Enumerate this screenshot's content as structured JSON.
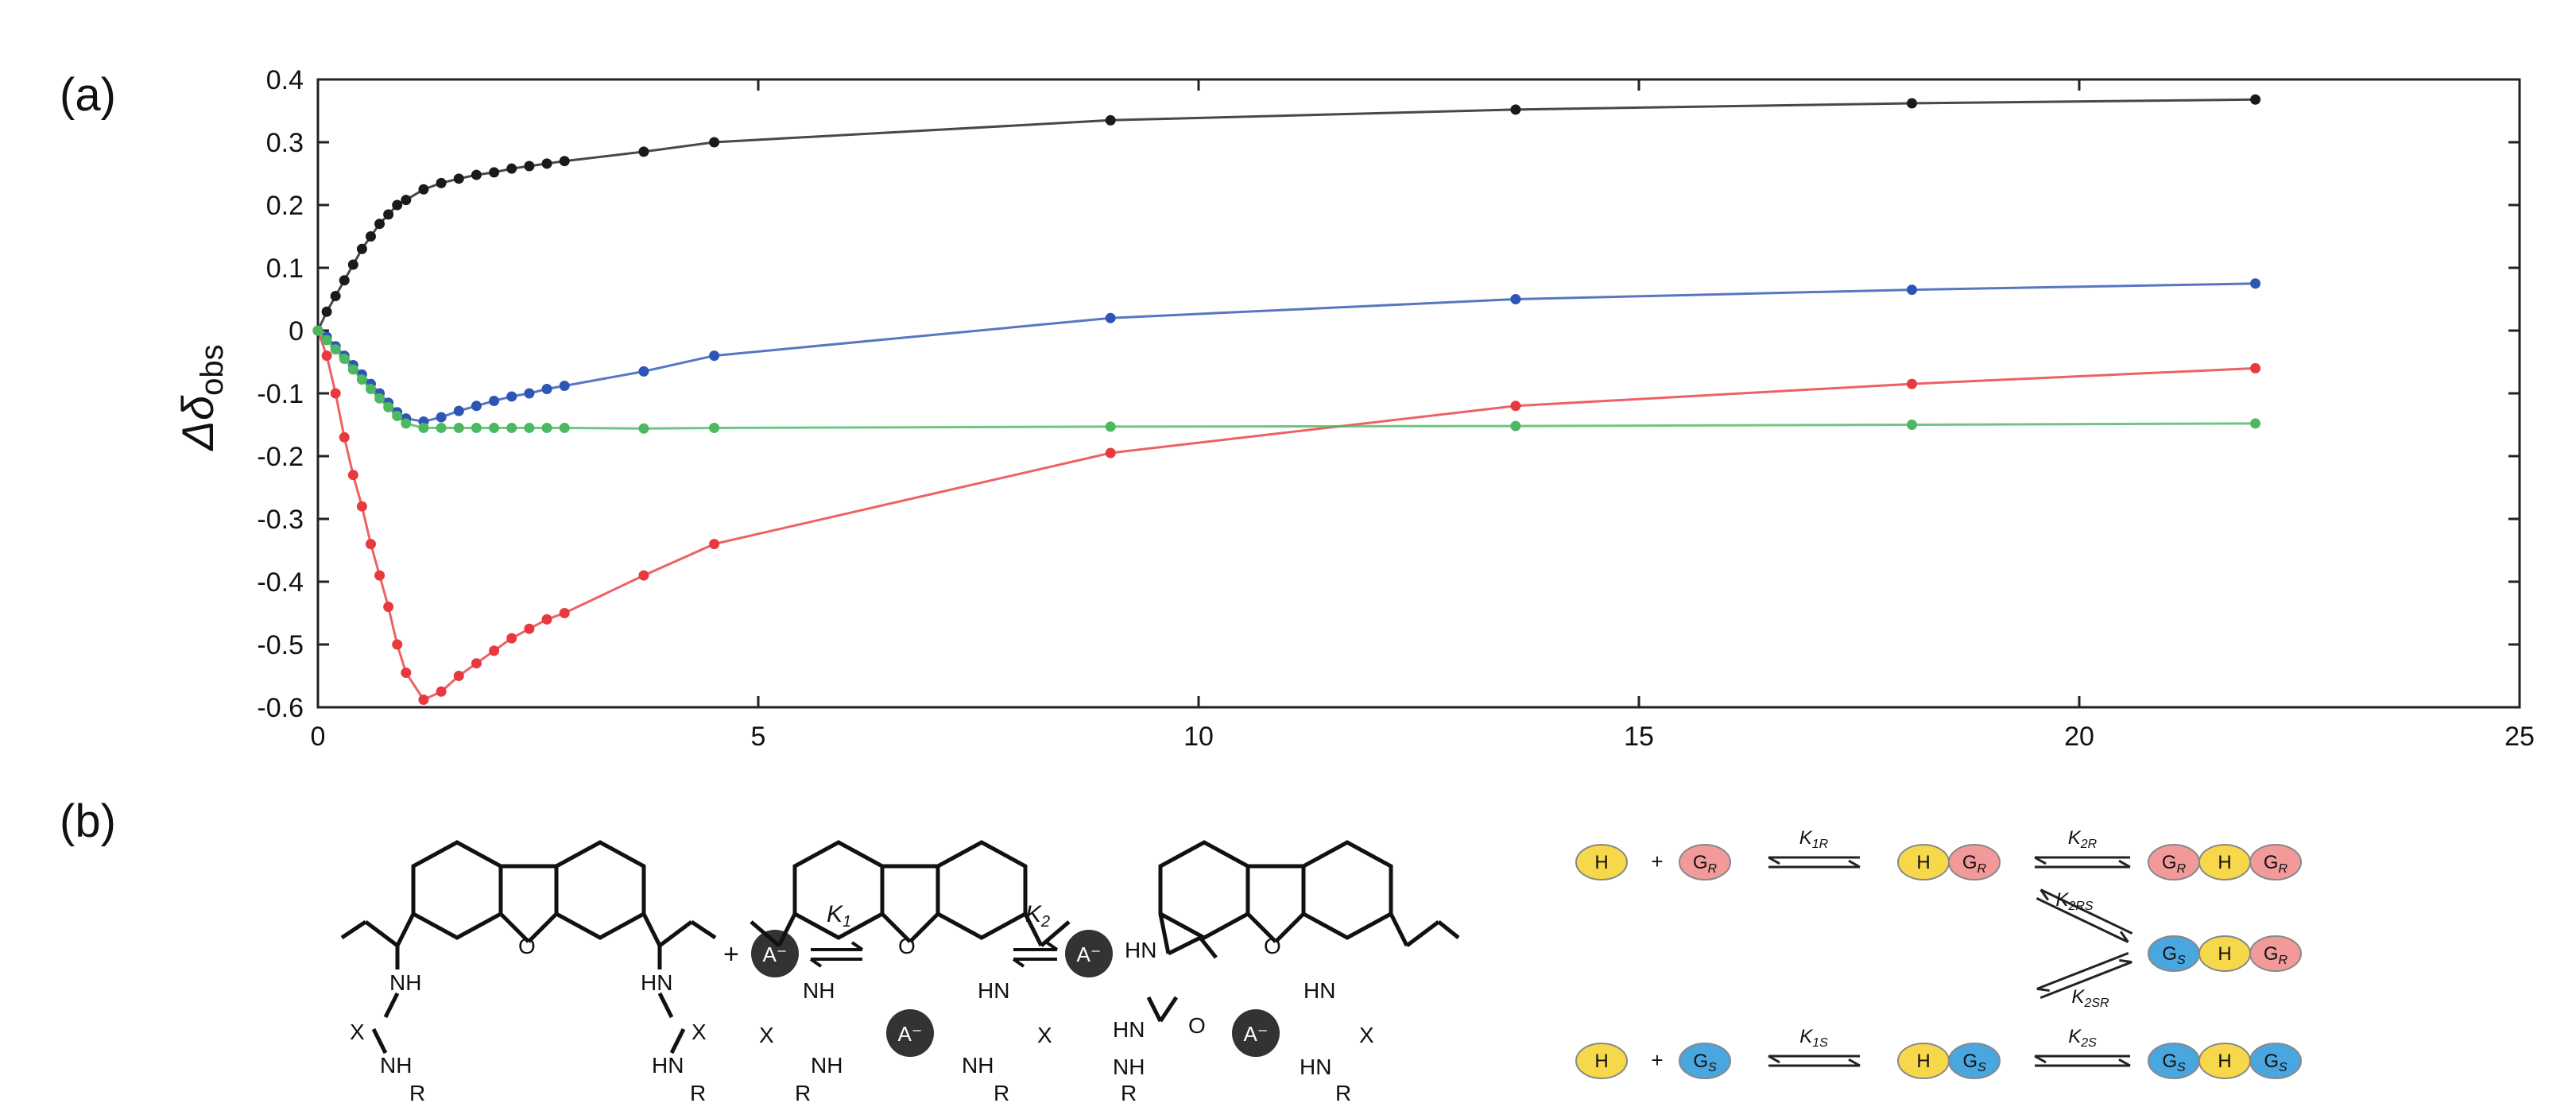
{
  "panels": {
    "a": "(a)",
    "b": "(b)"
  },
  "chart_data": {
    "type": "line",
    "title": "",
    "xlabel": "",
    "ylabel": "Δδ",
    "ylabel_sub": "obs",
    "xlim": [
      0,
      25
    ],
    "ylim": [
      -0.6,
      0.4
    ],
    "xticks": [
      0,
      5,
      10,
      15,
      20,
      25
    ],
    "yticks": [
      -0.6,
      -0.5,
      -0.4,
      -0.3,
      -0.2,
      -0.1,
      0,
      0.1,
      0.2,
      0.3,
      0.4
    ],
    "ytick_labels": [
      "-0.6",
      "-0.5",
      "-0.4",
      "-0.3",
      "-0.2",
      "-0.1",
      "0",
      "0.1",
      "0.2",
      "0.3",
      "0.4"
    ],
    "grid": false,
    "legend": "none",
    "series": [
      {
        "color": "#1a1a1a",
        "x": [
          0,
          0.1,
          0.2,
          0.3,
          0.4,
          0.5,
          0.6,
          0.7,
          0.8,
          0.9,
          1.0,
          1.2,
          1.4,
          1.6,
          1.8,
          2.0,
          2.2,
          2.4,
          2.6,
          2.8,
          3.7,
          4.5,
          9.0,
          13.6,
          18.1,
          22.0
        ],
        "y": [
          0,
          0.03,
          0.055,
          0.08,
          0.105,
          0.13,
          0.15,
          0.17,
          0.185,
          0.2,
          0.208,
          0.225,
          0.235,
          0.242,
          0.248,
          0.252,
          0.258,
          0.262,
          0.266,
          0.27,
          0.285,
          0.3,
          0.335,
          0.352,
          0.362,
          0.368
        ]
      },
      {
        "color": "#2d55b3",
        "x": [
          0,
          0.1,
          0.2,
          0.3,
          0.4,
          0.5,
          0.6,
          0.7,
          0.8,
          0.9,
          1.0,
          1.2,
          1.4,
          1.6,
          1.8,
          2.0,
          2.2,
          2.4,
          2.6,
          2.8,
          3.7,
          4.5,
          9.0,
          13.6,
          18.1,
          22.0
        ],
        "y": [
          0,
          -0.01,
          -0.025,
          -0.04,
          -0.055,
          -0.07,
          -0.085,
          -0.1,
          -0.115,
          -0.13,
          -0.14,
          -0.145,
          -0.138,
          -0.128,
          -0.12,
          -0.112,
          -0.105,
          -0.1,
          -0.093,
          -0.088,
          -0.065,
          -0.04,
          0.02,
          0.05,
          0.065,
          0.075
        ]
      },
      {
        "color": "#e8393f",
        "x": [
          0,
          0.1,
          0.2,
          0.3,
          0.4,
          0.5,
          0.6,
          0.7,
          0.8,
          0.9,
          1.0,
          1.2,
          1.4,
          1.6,
          1.8,
          2.0,
          2.2,
          2.4,
          2.6,
          2.8,
          3.7,
          4.5,
          9.0,
          13.6,
          18.1,
          22.0
        ],
        "y": [
          0,
          -0.04,
          -0.1,
          -0.17,
          -0.23,
          -0.28,
          -0.34,
          -0.39,
          -0.44,
          -0.5,
          -0.545,
          -0.588,
          -0.575,
          -0.55,
          -0.53,
          -0.51,
          -0.49,
          -0.475,
          -0.46,
          -0.45,
          -0.39,
          -0.34,
          -0.195,
          -0.12,
          -0.085,
          -0.06
        ]
      },
      {
        "color": "#4cb860",
        "x": [
          0,
          0.1,
          0.2,
          0.3,
          0.4,
          0.5,
          0.6,
          0.7,
          0.8,
          0.9,
          1.0,
          1.2,
          1.4,
          1.6,
          1.8,
          2.0,
          2.2,
          2.4,
          2.6,
          2.8,
          3.7,
          4.5,
          9.0,
          13.6,
          18.1,
          22.0
        ],
        "y": [
          0,
          -0.015,
          -0.03,
          -0.045,
          -0.062,
          -0.078,
          -0.093,
          -0.108,
          -0.122,
          -0.136,
          -0.148,
          -0.155,
          -0.155,
          -0.155,
          -0.155,
          -0.155,
          -0.155,
          -0.155,
          -0.155,
          -0.155,
          -0.156,
          -0.155,
          -0.153,
          -0.152,
          -0.15,
          -0.148
        ]
      }
    ]
  },
  "scheme": {
    "left": {
      "k1": "K",
      "k1_sub": "1",
      "k2": "K",
      "k2_sub": "2",
      "anion": "A⁻",
      "atoms": {
        "O": "O",
        "NH": "NH",
        "HN": "HN",
        "X": "X",
        "R": "R",
        "plus": "+"
      }
    },
    "right": {
      "host": "H",
      "guest_R": "G",
      "guest_S": "G",
      "sub_R": "R",
      "sub_S": "S",
      "plus": "+",
      "K1R": "K",
      "K1R_sub": "1R",
      "K2R": "K",
      "K2R_sub": "2R",
      "K2RS": "K",
      "K2RS_sub": "2RS",
      "K2SR": "K",
      "K2SR_sub": "2SR",
      "K1S": "K",
      "K1S_sub": "1S",
      "K2S": "K",
      "K2S_sub": "2S",
      "colors": {
        "host": "#f7d84a",
        "guest_R": "#f29a9a",
        "guest_S": "#4aa6de"
      }
    }
  }
}
